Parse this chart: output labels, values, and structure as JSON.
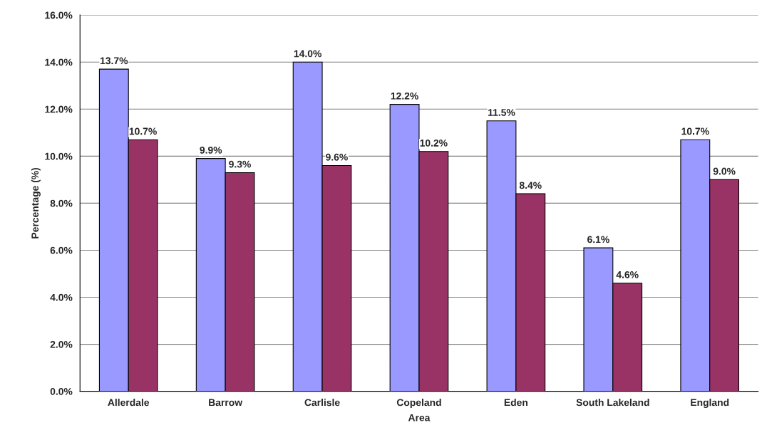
{
  "chart_data": {
    "type": "bar",
    "xlabel": "Area",
    "ylabel": "Percentage (%)",
    "categories": [
      "Allerdale",
      "Barrow",
      "Carlisle",
      "Copeland",
      "Eden",
      "South Lakeland",
      "England"
    ],
    "series": [
      {
        "color": "#9999ff",
        "values": [
          13.7,
          9.9,
          14.0,
          12.2,
          11.5,
          6.1,
          10.7
        ],
        "value_labels": [
          "13.7%",
          "9.9%",
          "14.0%",
          "12.2%",
          "11.5%",
          "6.1%",
          "10.7%"
        ]
      },
      {
        "color": "#993366",
        "values": [
          10.7,
          9.3,
          9.6,
          10.2,
          8.4,
          4.6,
          9.0
        ],
        "value_labels": [
          "10.7%",
          "9.3%",
          "9.6%",
          "10.2%",
          "8.4%",
          "4.6%",
          "9.0%"
        ]
      }
    ],
    "ylim": [
      0,
      16
    ],
    "yticks": [
      {
        "value": 0,
        "label": "0.0%"
      },
      {
        "value": 2,
        "label": "2.0%"
      },
      {
        "value": 4,
        "label": "4.0%"
      },
      {
        "value": 6,
        "label": "6.0%"
      },
      {
        "value": 8,
        "label": "8.0%"
      },
      {
        "value": 10,
        "label": "10.0%"
      },
      {
        "value": 12,
        "label": "12.0%"
      },
      {
        "value": 14,
        "label": "14.0%"
      },
      {
        "value": 16,
        "label": "16.0%"
      }
    ],
    "grid": "y"
  }
}
